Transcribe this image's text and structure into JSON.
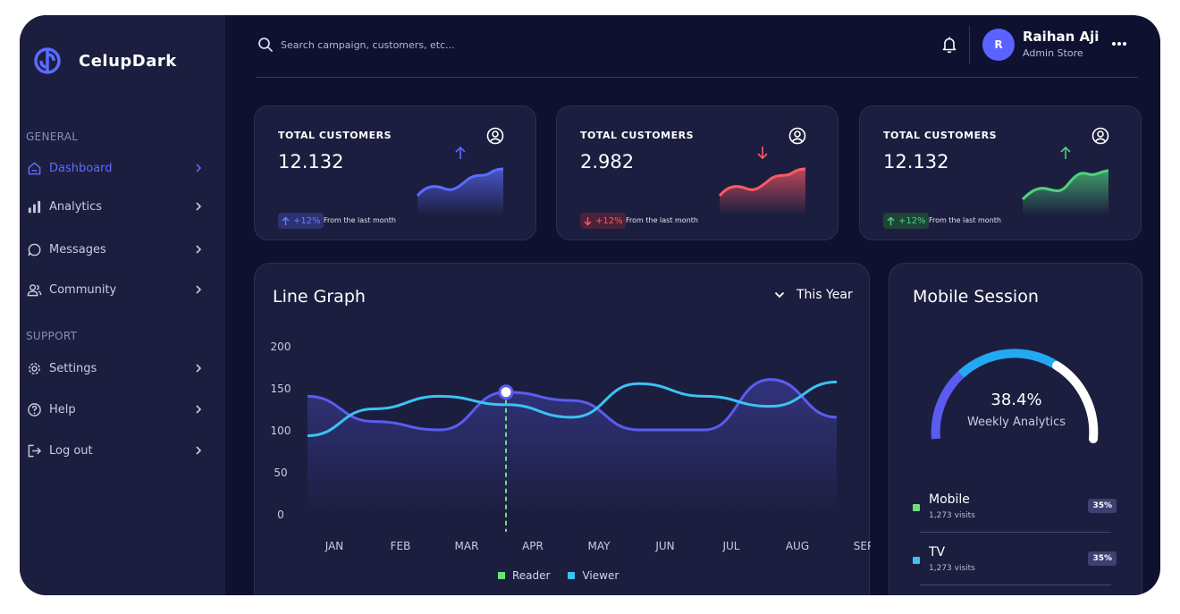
{
  "app": {
    "name": "CelupDark",
    "logo_icon": "celup-logo-icon"
  },
  "colors": {
    "accent": "#5b6cff",
    "reader": "#5a5cf0",
    "viewer": "#3cc2f2",
    "up_green": "#4ed37a",
    "down_red": "#ff5a66",
    "marker_green": "#6ee07a"
  },
  "sidebar": {
    "general_label": "GENERAL",
    "support_label": "SUPPORT",
    "general_items": [
      {
        "label": "Dashboard",
        "icon": "home-icon",
        "active": true
      },
      {
        "label": "Analytics",
        "icon": "bar-chart-icon",
        "active": false
      },
      {
        "label": "Messages",
        "icon": "message-icon",
        "active": false
      },
      {
        "label": "Community",
        "icon": "users-icon",
        "active": false
      }
    ],
    "support_items": [
      {
        "label": "Settings",
        "icon": "gear-icon"
      },
      {
        "label": "Help",
        "icon": "help-icon"
      },
      {
        "label": "Log out",
        "icon": "logout-icon"
      }
    ]
  },
  "header": {
    "search_placeholder": "Search campaign, customers, etc...",
    "user": {
      "initial": "R",
      "name": "Raihan Aji",
      "role": "Admin Store"
    }
  },
  "stat_cards": [
    {
      "title": "TOTAL CUSTOMERS",
      "value": "12.132",
      "change": "+12%",
      "change_note": "From the last month",
      "trend": "up",
      "color": "#5b6cff"
    },
    {
      "title": "TOTAL CUSTOMERS",
      "value": "2.982",
      "change": "+12%",
      "change_note": "From the last month",
      "trend": "down",
      "color": "#ff5a66"
    },
    {
      "title": "TOTAL CUSTOMERS",
      "value": "12.132",
      "change": "+12%",
      "change_note": "From the last month",
      "trend": "up",
      "color": "#4ed37a"
    }
  ],
  "line_graph": {
    "title": "Line Graph",
    "period": "This Year",
    "chart_data": {
      "type": "line",
      "categories": [
        "JAN",
        "FEB",
        "MAR",
        "APR",
        "MAY",
        "JUN",
        "JUL",
        "AUG",
        "SEP"
      ],
      "y_ticks": [
        "200",
        "150",
        "100",
        "50",
        "0"
      ],
      "ylim": [
        0,
        200
      ],
      "series": [
        {
          "name": "Reader",
          "values": [
            140,
            110,
            100,
            145,
            135,
            100,
            100,
            160,
            115
          ]
        },
        {
          "name": "Viewer",
          "values": [
            93,
            125,
            140,
            130,
            115,
            155,
            140,
            128,
            157
          ]
        }
      ],
      "highlight_category": "APR",
      "highlight_value": 145
    },
    "legend": [
      "Reader",
      "Viewer"
    ]
  },
  "mobile_session": {
    "title": "Mobile Session",
    "gauge_value": "38.4%",
    "gauge_label": "Weekly Analytics",
    "items": [
      {
        "name": "Mobile",
        "visits": "1,273 visits",
        "percent": "35%",
        "color": "#6ee07a"
      },
      {
        "name": "TV",
        "visits": "1,273 visits",
        "percent": "35%",
        "color": "#3cc2f2"
      }
    ]
  }
}
